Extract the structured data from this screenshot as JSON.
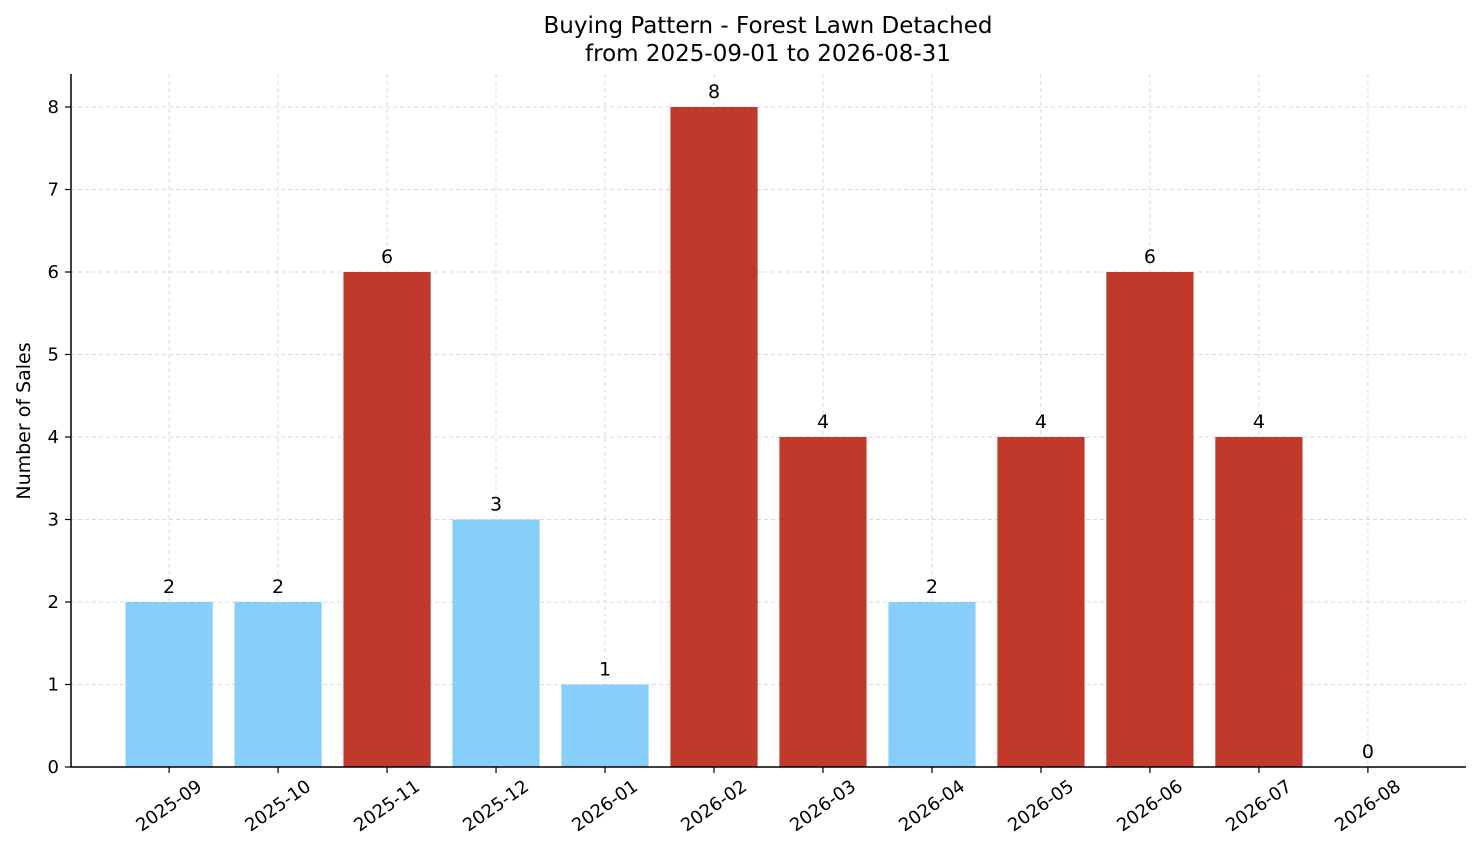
{
  "chart_data": {
    "type": "bar",
    "title": "Buying Pattern - Forest Lawn Detached",
    "subtitle": "from 2025-09-01 to 2026-08-31",
    "xlabel": "",
    "ylabel": "Number of Sales",
    "categories": [
      "2025-09",
      "2025-10",
      "2025-11",
      "2025-12",
      "2026-01",
      "2026-02",
      "2026-03",
      "2026-04",
      "2026-05",
      "2026-06",
      "2026-07",
      "2026-08"
    ],
    "values": [
      2,
      2,
      6,
      3,
      1,
      8,
      4,
      2,
      4,
      6,
      4,
      0
    ],
    "bar_colors": [
      "#87CEFA",
      "#87CEFA",
      "#C0392B",
      "#87CEFA",
      "#87CEFA",
      "#C0392B",
      "#C0392B",
      "#87CEFA",
      "#C0392B",
      "#C0392B",
      "#C0392B",
      "#C0392B"
    ],
    "yticks": [
      0,
      1,
      2,
      3,
      4,
      5,
      6,
      7,
      8
    ],
    "ylim": [
      0,
      8.4
    ],
    "grid": true
  }
}
